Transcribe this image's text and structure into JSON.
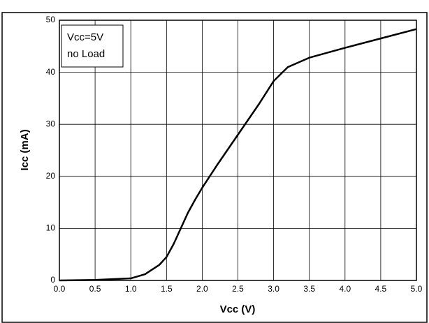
{
  "chart_data": {
    "type": "line",
    "xlabel": "Vcc  (V)",
    "ylabel": "Icc (mA)",
    "annotation": [
      "Vcc=5V",
      "no Load"
    ],
    "x": [
      0,
      0.5,
      1.0,
      1.2,
      1.4,
      1.5,
      1.6,
      1.7,
      1.8,
      1.9,
      2.0,
      2.2,
      2.5,
      2.8,
      3.0,
      3.2,
      3.5,
      4.0,
      4.5,
      5.0
    ],
    "series": [
      {
        "name": "Icc",
        "color": "#000000",
        "values": [
          0,
          0.1,
          0.4,
          1.2,
          3,
          4.5,
          7,
          10,
          13,
          15.5,
          17.8,
          22,
          28,
          34,
          38.3,
          41,
          42.8,
          44.7,
          46.5,
          48.3
        ]
      }
    ],
    "xlim": [
      0,
      5
    ],
    "ylim": [
      0,
      50
    ],
    "xticks": [
      {
        "value": 0,
        "label": "0.0"
      },
      {
        "value": 0.5,
        "label": "0.5"
      },
      {
        "value": 1,
        "label": "1.0"
      },
      {
        "value": 1.5,
        "label": "1.5"
      },
      {
        "value": 2,
        "label": "2.0"
      },
      {
        "value": 2.5,
        "label": "2.5"
      },
      {
        "value": 3,
        "label": "3.0"
      },
      {
        "value": 3.5,
        "label": "3.5"
      },
      {
        "value": 4,
        "label": "4.0"
      },
      {
        "value": 4.5,
        "label": "4.5"
      },
      {
        "value": 5,
        "label": "5.0"
      }
    ],
    "yticks": [
      0,
      10,
      20,
      30,
      40,
      50
    ],
    "grid": true
  }
}
